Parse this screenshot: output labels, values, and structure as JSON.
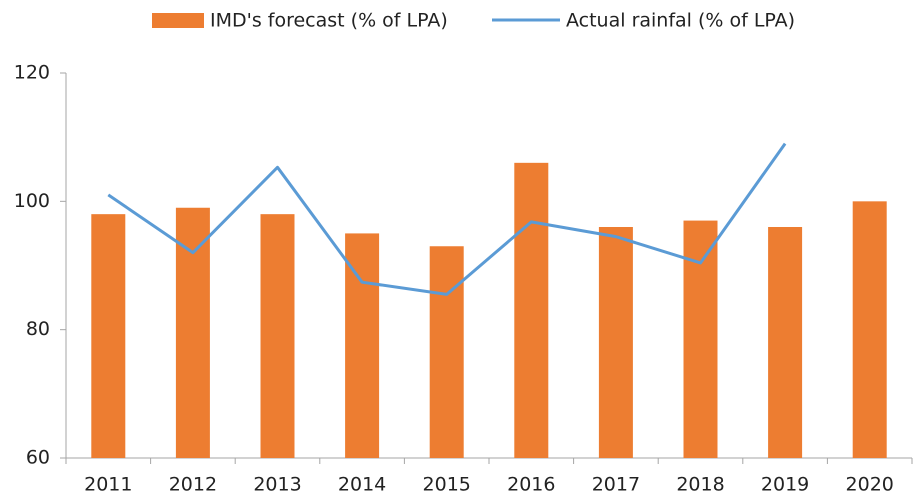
{
  "chart_data": {
    "type": "bar",
    "categories": [
      "2011",
      "2012",
      "2013",
      "2014",
      "2015",
      "2016",
      "2017",
      "2018",
      "2019",
      "2020"
    ],
    "series": [
      {
        "name": "IMD's forecast (% of LPA)",
        "type": "bar",
        "color": "#ed7d31",
        "values": [
          98,
          99,
          98,
          95,
          93,
          106,
          96,
          97,
          96,
          100
        ]
      },
      {
        "name": "Actual rainfal (% of LPA)",
        "type": "line",
        "color": "#5b9bd5",
        "values": [
          101,
          92,
          105.3,
          87.4,
          85.5,
          96.8,
          94.5,
          90.4,
          109,
          null
        ]
      }
    ],
    "ylim": [
      60,
      120
    ],
    "yticks": [
      60,
      80,
      100,
      120
    ],
    "grid": false,
    "legend": "top"
  }
}
